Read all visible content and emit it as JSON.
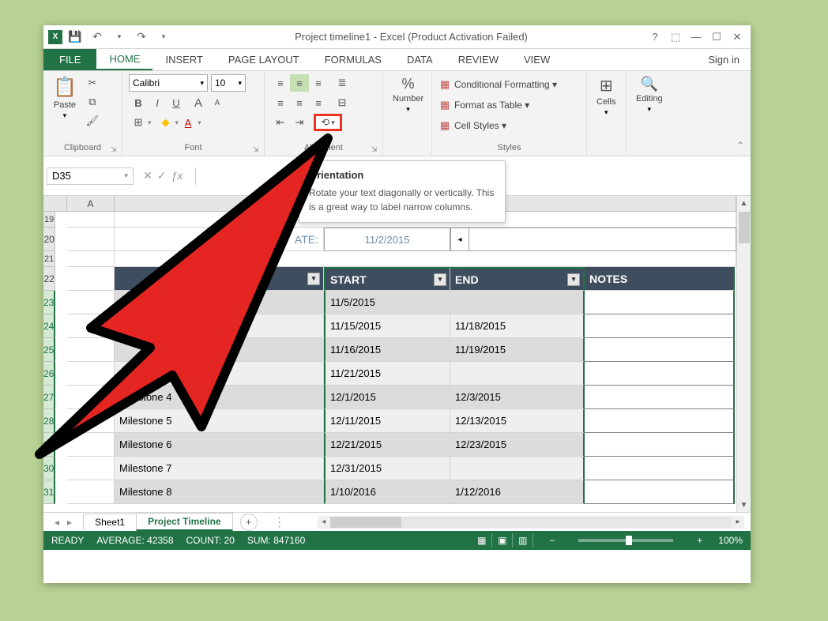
{
  "titlebar": {
    "title": "Project timeline1 - Excel (Product Activation Failed)",
    "qat": {
      "save": "💾",
      "undo": "↶",
      "redo": "↷",
      "dd": "▾"
    },
    "win": {
      "help": "?",
      "ribboncfg": "⬚",
      "min": "—",
      "max": "☐",
      "close": "✕"
    }
  },
  "tabs": {
    "file": "FILE",
    "home": "HOME",
    "insert": "INSERT",
    "pagelayout": "PAGE LAYOUT",
    "formulas": "FORMULAS",
    "data": "DATA",
    "review": "REVIEW",
    "view": "VIEW",
    "signin": "Sign in"
  },
  "ribbon": {
    "clipboard": {
      "label": "Clipboard",
      "paste": "Paste",
      "cut": "✂",
      "copy": "⧉",
      "painter": "🖌"
    },
    "font": {
      "label": "Font",
      "name": "Calibri",
      "size": "10",
      "bold": "B",
      "italic": "I",
      "underline": "U",
      "grow": "A",
      "shrink": "A",
      "border": "⊞",
      "fill": "◆",
      "color": "A"
    },
    "alignment": {
      "label": "Alignment",
      "orient": "⟲"
    },
    "number": {
      "label": "Number",
      "btn": "%"
    },
    "styles": {
      "label": "Styles",
      "cond": "Conditional Formatting ▾",
      "table": "Format as Table ▾",
      "cell": "Cell Styles ▾"
    },
    "cells": {
      "label": "Cells"
    },
    "editing": {
      "label": "Editing"
    }
  },
  "tooltip": {
    "title": "Orientation",
    "body": "Rotate your text diagonally or vertically. This is a great way to label narrow columns."
  },
  "formula_bar": {
    "namebox": "D35",
    "cancel": "✕",
    "enter": "✓",
    "fx": "ƒx"
  },
  "grid": {
    "col_headers": [
      "A"
    ],
    "col_a_width": 60,
    "row_heights": {
      "small": 20,
      "normal": 30
    },
    "rows": [
      "19",
      "20",
      "21",
      "22",
      "23",
      "24",
      "25",
      "26",
      "27",
      "28",
      "29",
      "30",
      "31"
    ],
    "project_date_label": "ATE:",
    "project_date_value": "11/2/2015",
    "spinner_left": "◂",
    "headers": {
      "start": "START",
      "end": "END",
      "notes": "NOTES"
    },
    "col_widths": {
      "a": 60,
      "milestone": 265,
      "start": 160,
      "end": 170,
      "notes": 190
    },
    "data": [
      {
        "milestone": "",
        "start": "11/5/2015",
        "end": "",
        "notes": ""
      },
      {
        "milestone": "",
        "start": "11/15/2015",
        "end": "11/18/2015",
        "notes": ""
      },
      {
        "milestone": "",
        "start": "11/16/2015",
        "end": "11/19/2015",
        "notes": ""
      },
      {
        "milestone": "stone 3",
        "start": "11/21/2015",
        "end": "",
        "notes": ""
      },
      {
        "milestone": "Milestone 4",
        "start": "12/1/2015",
        "end": "12/3/2015",
        "notes": ""
      },
      {
        "milestone": "Milestone 5",
        "start": "12/11/2015",
        "end": "12/13/2015",
        "notes": ""
      },
      {
        "milestone": "Milestone 6",
        "start": "12/21/2015",
        "end": "12/23/2015",
        "notes": ""
      },
      {
        "milestone": "Milestone 7",
        "start": "12/31/2015",
        "end": "",
        "notes": ""
      },
      {
        "milestone": "Milestone 8",
        "start": "1/10/2016",
        "end": "1/12/2016",
        "notes": ""
      }
    ]
  },
  "sheettabs": {
    "s1": "Sheet1",
    "s2": "Project Timeline",
    "new": "+"
  },
  "statusbar": {
    "ready": "READY",
    "average": "AVERAGE: 42358",
    "count": "COUNT: 20",
    "sum": "SUM: 847160",
    "zoom": "100%"
  },
  "colors": {
    "excel_green": "#217346",
    "cursor_red": "#e52521",
    "cursor_stroke": "#000000",
    "table_header": "#3e4e5e",
    "alt_row_a": "#dcdcdc",
    "alt_row_b": "#efefef",
    "page_bg": "#b8d194"
  }
}
